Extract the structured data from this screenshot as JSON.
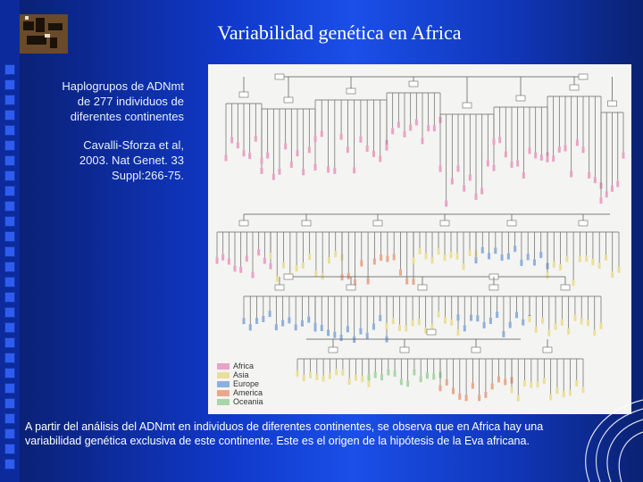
{
  "slide": {
    "title": "Variabilidad genética en Africa",
    "side_text_1": [
      "Haplogrupos de ADNmt",
      "de 277 individuos de",
      "diferentes continentes"
    ],
    "side_text_2": [
      "Cavalli-Sforza et al,",
      "2003. Nat Genet. 33",
      "Suppl:266-75."
    ],
    "bottom_text": "A partir del análisis del ADNmt en individuos de diferentes continentes, se observa que en Africa hay una variabilidad genética exclusiva de este continente. Este es el origen de la hipótesis de la Eva africana."
  },
  "figure": {
    "legend": [
      {
        "label": "Africa",
        "color": "#e9a3c4"
      },
      {
        "label": "Asia",
        "color": "#eadf9a"
      },
      {
        "label": "Europe",
        "color": "#8fb0d8"
      },
      {
        "label": "America",
        "color": "#e7a98e"
      },
      {
        "label": "Oceania",
        "color": "#a9d6a8"
      }
    ]
  }
}
